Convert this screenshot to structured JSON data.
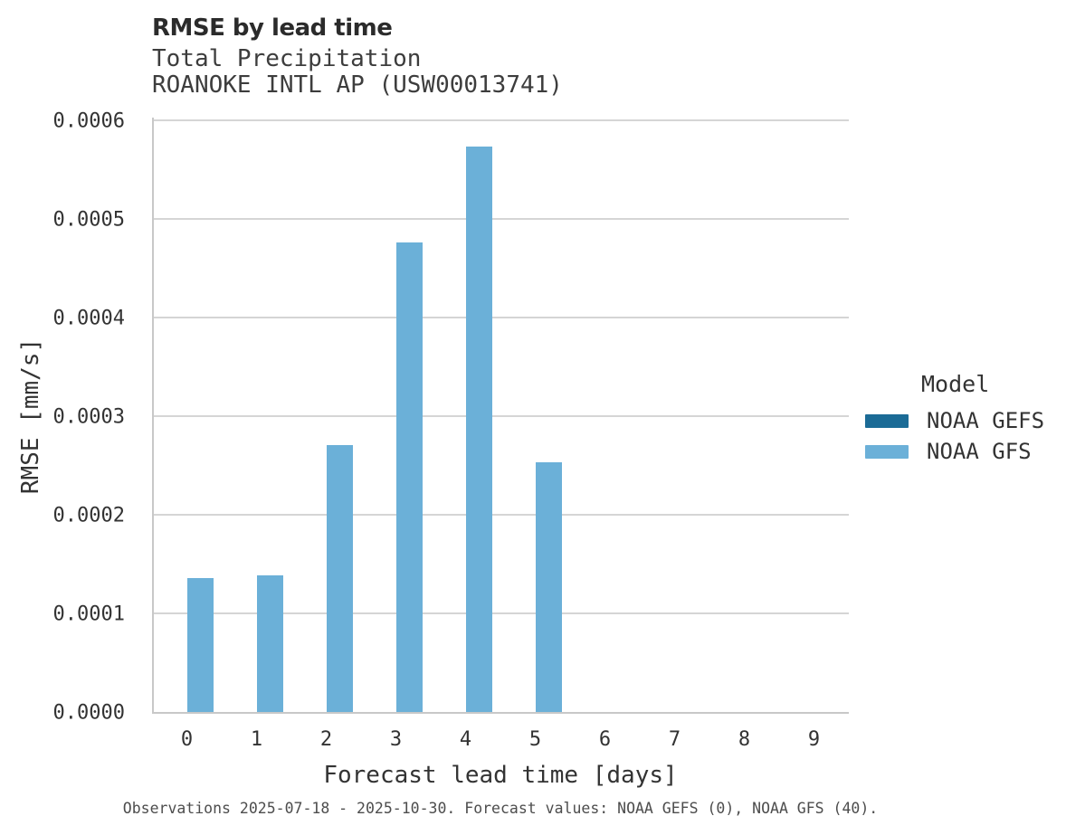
{
  "header": {
    "title": "RMSE by lead time",
    "subtitle_line1": "Total Precipitation",
    "subtitle_line2": "ROANOKE INTL AP (USW00013741)"
  },
  "caption": "Observations 2025-07-18 - 2025-10-30. Forecast values: NOAA GEFS (0), NOAA GFS (40).",
  "chart_data": {
    "type": "bar",
    "title": "RMSE by lead time",
    "subtitle": [
      "Total Precipitation",
      "ROANOKE INTL AP (USW00013741)"
    ],
    "xlabel": "Forecast lead time [days]",
    "ylabel": "RMSE [mm/s]",
    "categories": [
      0,
      1,
      2,
      3,
      4,
      5,
      6,
      7,
      8,
      9
    ],
    "x_tick_labels": [
      "0",
      "1",
      "2",
      "3",
      "4",
      "5",
      "6",
      "7",
      "8",
      "9"
    ],
    "y_ticks": [
      0.0,
      0.0001,
      0.0002,
      0.0003,
      0.0004,
      0.0005,
      0.0006
    ],
    "y_tick_labels": [
      "0.0000",
      "0.0001",
      "0.0002",
      "0.0003",
      "0.0004",
      "0.0005",
      "0.0006"
    ],
    "ylim": [
      0.0,
      0.0006
    ],
    "grid": "horizontal",
    "legend": {
      "title": "Model",
      "position": "right",
      "entries": [
        {
          "name": "NOAA GEFS",
          "color": "#1b6b96"
        },
        {
          "name": "NOAA GFS",
          "color": "#6bb0d8"
        }
      ]
    },
    "series": [
      {
        "name": "NOAA GEFS",
        "color": "#1b6b96",
        "values": [
          null,
          null,
          null,
          null,
          null,
          null,
          null,
          null,
          null,
          null
        ]
      },
      {
        "name": "NOAA GFS",
        "color": "#6bb0d8",
        "values": [
          0.000136,
          0.000139,
          0.000271,
          0.000476,
          0.000573,
          0.000253,
          null,
          null,
          null,
          null
        ]
      }
    ],
    "colors": {
      "gridline": "#d5d5d5",
      "axis_line": "#c8c8c8"
    }
  }
}
